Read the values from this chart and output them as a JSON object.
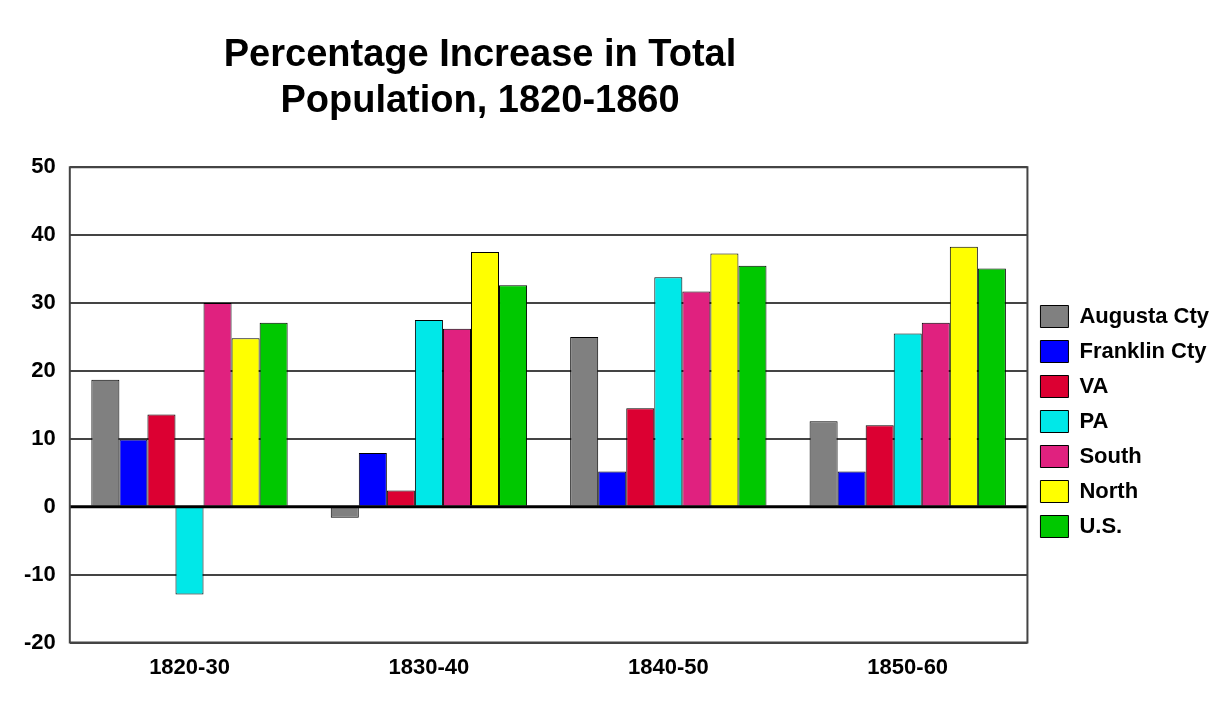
{
  "chart_data": {
    "type": "bar",
    "title": "Percentage Increase in Total Population, 1820-1860",
    "categories": [
      "1820-30",
      "1830-40",
      "1840-50",
      "1850-60"
    ],
    "series": [
      {
        "name": "Augusta Cty",
        "color": "#808080",
        "values": [
          18.7,
          -1.6,
          25.0,
          12.6
        ]
      },
      {
        "name": "Franklin Cty",
        "color": "#0000ff",
        "values": [
          9.9,
          7.9,
          5.2,
          5.2
        ]
      },
      {
        "name": "VA",
        "color": "#dc0032",
        "values": [
          13.6,
          2.4,
          14.5,
          12.0
        ]
      },
      {
        "name": "PA",
        "color": "#00e8e8",
        "values": [
          -12.9,
          27.5,
          33.8,
          25.5
        ]
      },
      {
        "name": "South",
        "color": "#e0217f",
        "values": [
          30.0,
          26.2,
          31.7,
          27.1
        ]
      },
      {
        "name": "North",
        "color": "#ffff00",
        "values": [
          24.8,
          37.5,
          37.3,
          38.3
        ]
      },
      {
        "name": "U.S.",
        "color": "#00c800",
        "values": [
          27.1,
          32.6,
          35.5,
          35.1
        ]
      }
    ],
    "ylim": [
      -20,
      50
    ],
    "yticks": [
      -20,
      -10,
      0,
      10,
      20,
      30,
      40,
      50
    ],
    "grid": "y",
    "legend": "right"
  }
}
